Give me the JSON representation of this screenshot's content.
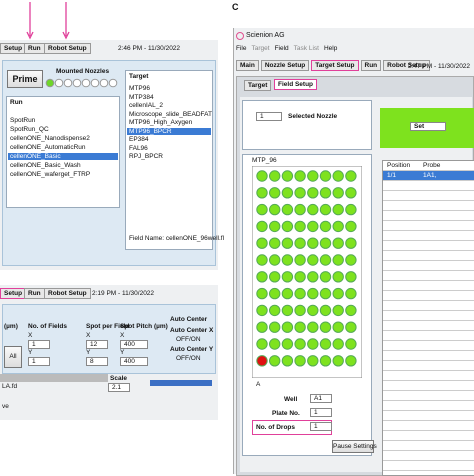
{
  "panel_a": {
    "tabs": [
      "Setup",
      "Run",
      "Robot Setup"
    ],
    "time": "2:46 PM - 11/30/2022",
    "prime": "Prime",
    "mounted_nozzles": "Mounted Nozzles",
    "run_label": "Run",
    "runs": [
      "SpotRun",
      "SpotRun_QC",
      "cellenONE_Nanodispense2",
      "cellenONE_AutomaticRun",
      "cellenONE_Basic",
      "cellenONE_Basic_Wash",
      "cellenONE_waferget_FTRP"
    ],
    "target_label": "Target",
    "targets": [
      "MTP96",
      "MTP384",
      "cellenIAL_2",
      "Microscope_slide_BEADFAT",
      "MTP96_High_Axygen",
      "MTP96_BPCR",
      "EP384",
      "FAL96",
      "RPJ_BPCR"
    ],
    "field_name": "Field Name:  cellenONE_96well.fl"
  },
  "panel_b": {
    "tabs": [
      "Setup",
      "Run",
      "Robot Setup"
    ],
    "time": "2:19 PM - 11/30/2022",
    "um": "(µm)",
    "fields": "No. of Fields",
    "spot_per_field": "Spot per Field",
    "pitch": "Spot Pitch (µm)",
    "auto_center": "Auto Center",
    "x": "X",
    "y": "Y",
    "fields_x": "1",
    "fields_y": "1",
    "spf_x": "12",
    "spf_y": "8",
    "pitch_x": "400",
    "pitch_y": "400",
    "all": "All",
    "auto_x": "Auto Center X",
    "auto_y": "Auto Center Y",
    "offon": "OFF/ON",
    "file": "LA.fd",
    "ve": "ve",
    "scale": "Scale",
    "scale_value": "2.1"
  },
  "panel_c": {
    "letter": "C",
    "title": "Scienion AG",
    "menu": [
      "File",
      "Target",
      "Field",
      "Task List",
      "Help"
    ],
    "tabs": [
      "Main",
      "Nozzle Setup",
      "Target Setup",
      "Run",
      "Robot Setup"
    ],
    "time": "2:47 PM - 11/30/2022",
    "subtabs": [
      "Target",
      "Field Setup"
    ],
    "nozzle": "1",
    "selected_nozzle": "Selected Nozzle",
    "set": "Set",
    "plate": "MTP_96",
    "row_a": "A",
    "well_label": "Well",
    "well": "A1",
    "plate_no_label": "Plate No.",
    "plate_no": "1",
    "drops_label": "No. of Drops",
    "drops": "1",
    "pause": "Pause Settings",
    "table": {
      "headers": [
        "Position",
        "Probe"
      ],
      "rows": [
        [
          "1/1",
          "1A1,"
        ]
      ]
    }
  }
}
